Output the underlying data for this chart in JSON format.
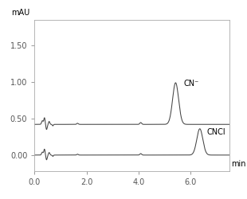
{
  "title": "",
  "xlabel": "min",
  "ylabel": "mAU",
  "xlim": [
    0.0,
    7.5
  ],
  "ylim": [
    -0.22,
    1.85
  ],
  "xticks": [
    0.0,
    2.0,
    4.0,
    6.0
  ],
  "yticks": [
    0.0,
    0.5,
    1.0,
    1.5
  ],
  "ytick_labels": [
    "0.00",
    "0.50",
    "1.00",
    "1.50"
  ],
  "line_color": "#444444",
  "background": "#ffffff",
  "cn_label": "CN⁻",
  "cncl_label": "CNCl",
  "cn_baseline": 0.42,
  "cncl_baseline": 0.0,
  "spine_color": "#aaaaaa",
  "tick_color": "#888888",
  "label_color": "#666666"
}
